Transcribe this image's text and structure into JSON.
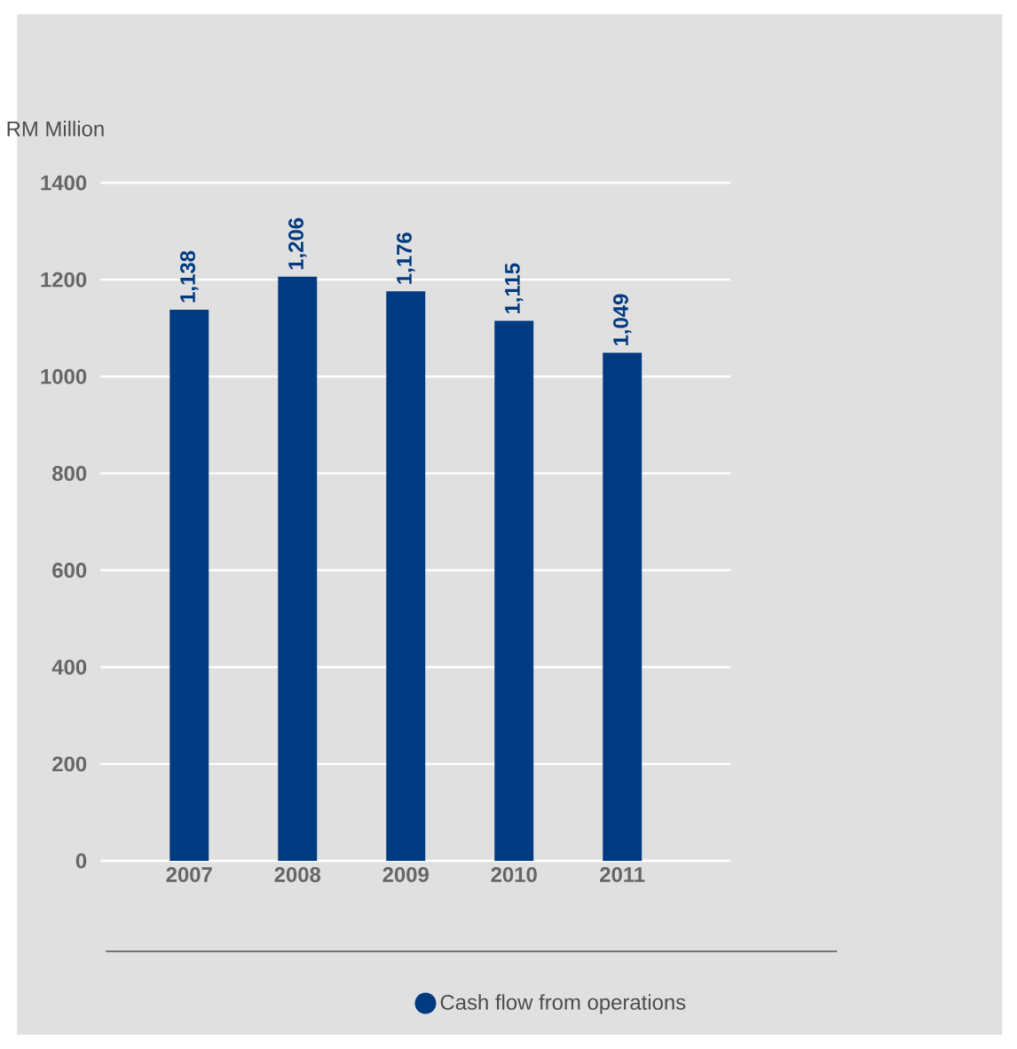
{
  "chart_data": {
    "type": "bar",
    "ylabel": "RM Million",
    "categories": [
      "2007",
      "2008",
      "2009",
      "2010",
      "2011"
    ],
    "series": [
      {
        "name": "Cash flow from operations",
        "color": "#003a80",
        "values": [
          1138,
          1206,
          1176,
          1115,
          1049
        ],
        "value_labels": [
          "1,138",
          "1,206",
          "1,176",
          "1,115",
          "1,049"
        ]
      }
    ],
    "ylim": [
      0,
      1400
    ],
    "yticks": [
      0,
      200,
      400,
      600,
      800,
      1000,
      1200,
      1400
    ],
    "grid": "y",
    "legend": "bottom right"
  }
}
